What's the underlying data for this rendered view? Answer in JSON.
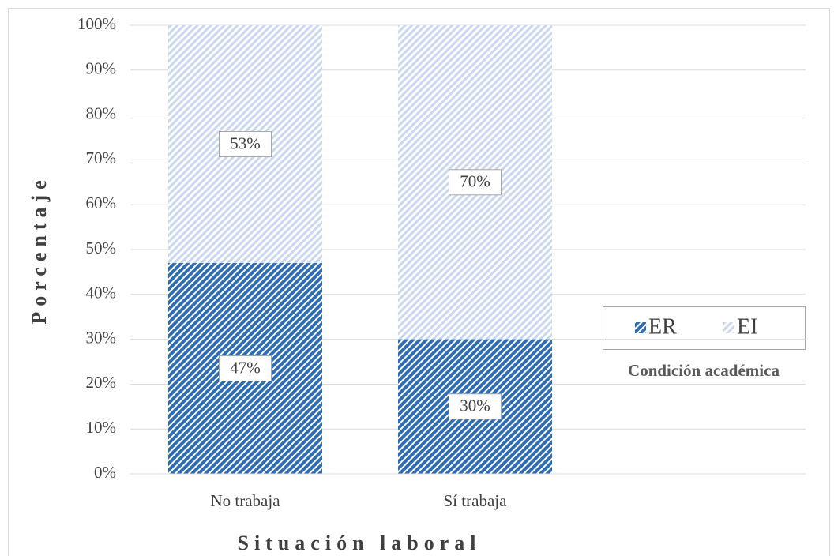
{
  "chart_data": {
    "type": "stacked_bar",
    "categories": [
      "No trabaja",
      "Sí trabaja"
    ],
    "series": [
      {
        "name": "ER",
        "color": "#2e6db4",
        "values": [
          47,
          30
        ],
        "value_labels": [
          "47%",
          "30%"
        ]
      },
      {
        "name": "EI",
        "color": "#c9d8ee",
        "values": [
          53,
          70
        ],
        "value_labels": [
          "53%",
          "70%"
        ]
      }
    ],
    "ylim": [
      0,
      100
    ],
    "yticks": [
      {
        "value": 0,
        "label": "0%"
      },
      {
        "value": 10,
        "label": "10%"
      },
      {
        "value": 20,
        "label": "20%"
      },
      {
        "value": 30,
        "label": "30%"
      },
      {
        "value": 40,
        "label": "40%"
      },
      {
        "value": 50,
        "label": "50%"
      },
      {
        "value": 60,
        "label": "60%"
      },
      {
        "value": 70,
        "label": "70%"
      },
      {
        "value": 80,
        "label": "80%"
      },
      {
        "value": 90,
        "label": "90%"
      },
      {
        "value": 100,
        "label": "100%"
      }
    ],
    "grid": true,
    "y_label": "Porcentaje",
    "x_label": "Situación laboral",
    "legend_title": "Condición académica",
    "legend_position": "right"
  }
}
